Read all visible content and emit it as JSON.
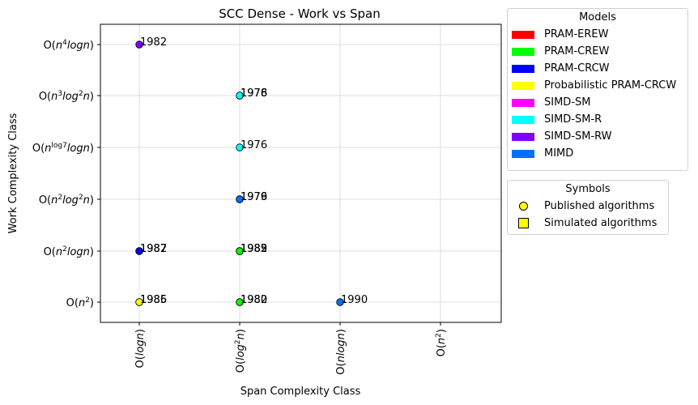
{
  "chart_data": {
    "type": "scatter",
    "title": "SCC Dense - Work vs Span",
    "xlabel": "Span Complexity Class",
    "ylabel": "Work Complexity Class",
    "x_categories": [
      {
        "id": "logn",
        "parts": [
          {
            "t": "O("
          },
          {
            "t": "log",
            "i": true
          },
          {
            "t": "n",
            "i": true
          },
          {
            "t": ")"
          }
        ]
      },
      {
        "id": "log2n",
        "parts": [
          {
            "t": "O("
          },
          {
            "t": "log",
            "i": true
          },
          {
            "t": "2",
            "sup": true
          },
          {
            "t": "n",
            "i": true
          },
          {
            "t": ")"
          }
        ]
      },
      {
        "id": "nlogn",
        "parts": [
          {
            "t": "O("
          },
          {
            "t": "nlogn",
            "i": true
          },
          {
            "t": ")"
          }
        ]
      },
      {
        "id": "n2",
        "parts": [
          {
            "t": "O("
          },
          {
            "t": "n",
            "i": true
          },
          {
            "t": "2",
            "sup": true
          },
          {
            "t": ")"
          }
        ]
      }
    ],
    "y_categories": [
      {
        "id": "n2",
        "parts": [
          {
            "t": "O("
          },
          {
            "t": "n",
            "i": true
          },
          {
            "t": "2",
            "sup": true
          },
          {
            "t": ")"
          }
        ]
      },
      {
        "id": "n2logn",
        "parts": [
          {
            "t": "O("
          },
          {
            "t": "n",
            "i": true
          },
          {
            "t": "2",
            "sup": true
          },
          {
            "t": "logn",
            "i": true
          },
          {
            "t": ")"
          }
        ]
      },
      {
        "id": "n2log2n",
        "parts": [
          {
            "t": "O("
          },
          {
            "t": "n",
            "i": true
          },
          {
            "t": "2",
            "sup": true
          },
          {
            "t": "log",
            "i": true
          },
          {
            "t": "2",
            "sup": true
          },
          {
            "t": "n",
            "i": true
          },
          {
            "t": ")"
          }
        ]
      },
      {
        "id": "nlog7logn",
        "parts": [
          {
            "t": "O("
          },
          {
            "t": "n",
            "i": true
          },
          {
            "t": "log7",
            "sup": true
          },
          {
            "t": "logn",
            "i": true
          },
          {
            "t": ")"
          }
        ]
      },
      {
        "id": "n3log2n",
        "parts": [
          {
            "t": "O("
          },
          {
            "t": "n",
            "i": true
          },
          {
            "t": "3",
            "sup": true
          },
          {
            "t": "log",
            "i": true
          },
          {
            "t": "2",
            "sup": true
          },
          {
            "t": "n",
            "i": true
          },
          {
            "t": ")"
          }
        ]
      },
      {
        "id": "n4logn",
        "parts": [
          {
            "t": "O("
          },
          {
            "t": "n",
            "i": true
          },
          {
            "t": "4",
            "sup": true
          },
          {
            "t": "logn",
            "i": true
          },
          {
            "t": ")"
          }
        ]
      }
    ],
    "points": [
      {
        "x": 0,
        "y": 5,
        "color": "#8000ff",
        "label": "1982"
      },
      {
        "x": 0,
        "y": 1,
        "color": "#0000ff",
        "label": "1987"
      },
      {
        "x": 0,
        "y": 1,
        "color": "#0000ff",
        "label": "1982"
      },
      {
        "x": 0,
        "y": 0,
        "color": "#ffff00",
        "label": "1986"
      },
      {
        "x": 0,
        "y": 0,
        "color": "#ffff00",
        "label": "1985"
      },
      {
        "x": 1,
        "y": 4,
        "color": "#00ffff",
        "label": "1978"
      },
      {
        "x": 1,
        "y": 4,
        "color": "#00ffff",
        "label": "1976"
      },
      {
        "x": 1,
        "y": 3,
        "color": "#00ffff",
        "label": "1976"
      },
      {
        "x": 1,
        "y": 2,
        "color": "#0070ff",
        "label": "1979"
      },
      {
        "x": 1,
        "y": 2,
        "color": "#0070ff",
        "label": "1976"
      },
      {
        "x": 1,
        "y": 1,
        "color": "#00ff00",
        "label": "1989"
      },
      {
        "x": 1,
        "y": 1,
        "color": "#00ff00",
        "label": "1985"
      },
      {
        "x": 1,
        "y": 1,
        "color": "#00ff00",
        "label": "1982"
      },
      {
        "x": 1,
        "y": 0,
        "color": "#00ff00",
        "label": "1982"
      },
      {
        "x": 1,
        "y": 0,
        "color": "#00ff00",
        "label": "1980"
      },
      {
        "x": 2,
        "y": 0,
        "color": "#0070ff",
        "label": "1990"
      }
    ],
    "grid": true,
    "legends": [
      {
        "title": "Models",
        "placement": "outside right, top"
      },
      {
        "title": "Symbols",
        "placement": "outside right, below models"
      }
    ]
  },
  "legend_models": {
    "title": "Models",
    "items": [
      {
        "label": "PRAM-EREW",
        "color": "#ff0000"
      },
      {
        "label": "PRAM-CREW",
        "color": "#00ff00"
      },
      {
        "label": "PRAM-CRCW",
        "color": "#0000ff"
      },
      {
        "label": "Probabilistic PRAM-CRCW",
        "color": "#ffff00"
      },
      {
        "label": "SIMD-SM",
        "color": "#ff00ff"
      },
      {
        "label": "SIMD-SM-R",
        "color": "#00ffff"
      },
      {
        "label": "SIMD-SM-RW",
        "color": "#8000ff"
      },
      {
        "label": "MIMD",
        "color": "#0070ff"
      }
    ]
  },
  "legend_symbols": {
    "title": "Symbols",
    "items": [
      {
        "label": "Published algorithms",
        "shape": "circle",
        "color": "#ffff00"
      },
      {
        "label": "Simulated algorithms",
        "shape": "square",
        "color": "#ffff00"
      }
    ]
  }
}
